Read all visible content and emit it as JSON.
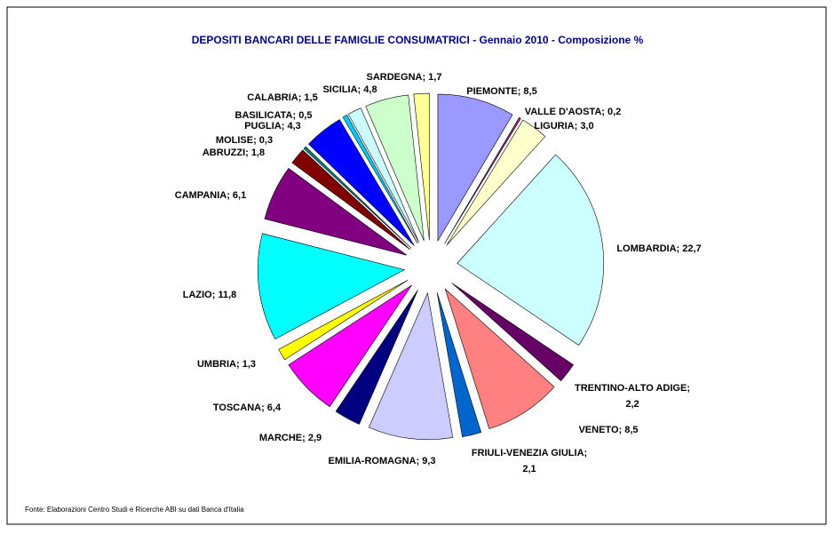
{
  "chart_data": {
    "type": "pie",
    "title": "DEPOSITI BANCARI DELLE FAMIGLIE CONSUMATRICI  - Gennaio 2010 - Composizione %",
    "source": "Fonte: Elaborazioni Centro Studi e Ricerche ABI su dati Banca d'Italia",
    "values": [
      8.5,
      0.2,
      3.0,
      22.7,
      2.2,
      8.5,
      2.1,
      9.3,
      2.9,
      6.4,
      1.3,
      11.8,
      6.1,
      1.8,
      0.3,
      4.3,
      0.5,
      1.5,
      4.8,
      1.7
    ],
    "value_labels": [
      "PIEMONTE; 8,5",
      "VALLE D'AOSTA; 0,2",
      "LIGURIA; 3,0",
      "LOMBARDIA; 22,7",
      "TRENTINO-ALTO ADIGE; 2,2",
      "VENETO; 8,5",
      "FRIULI-VENEZIA GIULIA; 2,1",
      "EMILIA-ROMAGNA; 9,3",
      "MARCHE; 2,9",
      "TOSCANA; 6,4",
      "UMBRIA; 1,3",
      "LAZIO; 11,8",
      "CAMPANIA; 6,1",
      "ABRUZZI; 1,8",
      "MOLISE; 0,3",
      "PUGLIA; 4,3",
      "BASILICATA; 0,5",
      "CALABRIA; 1,5",
      "SICILIA; 4,8",
      "SARDEGNA; 1,7"
    ],
    "colors": [
      "#9999ff",
      "#993366",
      "#ffffcc",
      "#ccffff",
      "#660066",
      "#ff8080",
      "#0066cc",
      "#ccccff",
      "#000080",
      "#ff00ff",
      "#ffff00",
      "#00ffff",
      "#800080",
      "#800000",
      "#008080",
      "#0000ff",
      "#00ccff",
      "#ccffff",
      "#ccffcc",
      "#ffff99"
    ]
  }
}
